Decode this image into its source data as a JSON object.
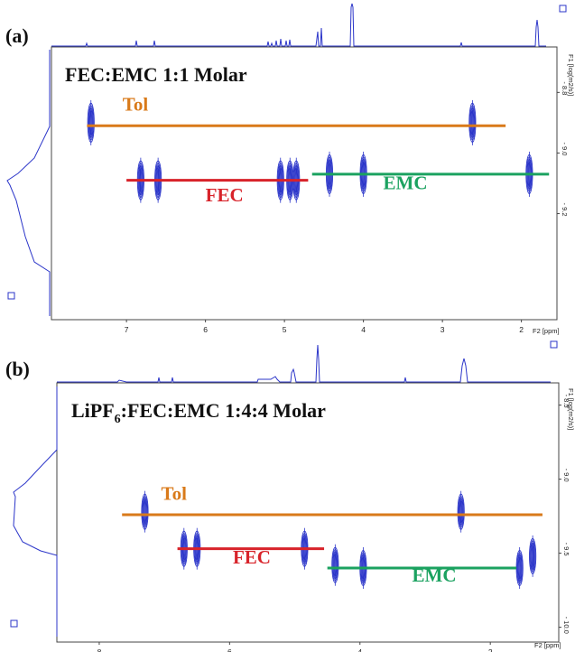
{
  "colors": {
    "fec": "#d8232a",
    "emc": "#1ba260",
    "tol": "#d97a1a",
    "spectrum": "#2b35c9",
    "frame": "#444444"
  },
  "chart_data": [
    {
      "type": "scatter",
      "panel": "(a)",
      "title": "FEC:EMC 1:1 Molar",
      "xlabel": "F2 [ppm]",
      "ylabel": "F1 [log(m2/s)]",
      "xlim": [
        7.95,
        1.55
      ],
      "ylim": [
        -8.65,
        -9.55
      ],
      "x_ticks": [
        7,
        6,
        5,
        4,
        3,
        2
      ],
      "y_ticks": [
        -9.2,
        -9.0,
        -8.8
      ],
      "y_tick_labels": [
        "- 9.2",
        "- 9.0",
        "- 8.8"
      ],
      "assignments": [
        {
          "name": "FEC",
          "x_start": 7.0,
          "x_end": 4.7,
          "y": -9.09,
          "label_x": 6.0,
          "label_y": -9.16
        },
        {
          "name": "EMC",
          "x_start": 4.65,
          "x_end": 1.65,
          "y": -9.07,
          "label_x": 3.75,
          "label_y": -9.12
        },
        {
          "name": "Tol",
          "x_start": 7.5,
          "x_end": 2.2,
          "y": -8.91,
          "label_x": 7.05,
          "label_y": -8.86
        }
      ],
      "peaks": [
        {
          "x": 7.45,
          "y": -8.9
        },
        {
          "x": 6.82,
          "y": -9.09
        },
        {
          "x": 6.6,
          "y": -9.09
        },
        {
          "x": 5.05,
          "y": -9.09
        },
        {
          "x": 4.93,
          "y": -9.09
        },
        {
          "x": 4.85,
          "y": -9.09
        },
        {
          "x": 4.43,
          "y": -9.07
        },
        {
          "x": 4.0,
          "y": -9.07
        },
        {
          "x": 2.62,
          "y": -8.9
        },
        {
          "x": 1.9,
          "y": -9.07
        }
      ]
    },
    {
      "type": "scatter",
      "panel": "(b)",
      "title_parts": [
        "LiPF",
        "6",
        ":FEC:EMC 1:4:4 Molar"
      ],
      "xlabel": "F2 [ppm]",
      "ylabel": "F1 [log(m2/s)]",
      "xlim": [
        8.65,
        0.95
      ],
      "ylim": [
        -8.35,
        -10.1
      ],
      "x_ticks": [
        8,
        6,
        4,
        2
      ],
      "y_ticks": [
        -10.0,
        -9.5,
        -9.0,
        -8.5
      ],
      "y_tick_labels": [
        "- 10.0",
        "- 9.5",
        "- 9.0",
        "- 8.5"
      ],
      "assignments": [
        {
          "name": "FEC",
          "x_start": 6.8,
          "x_end": 4.55,
          "y": -9.47,
          "label_x": 5.95,
          "label_y": -9.57
        },
        {
          "name": "EMC",
          "x_start": 4.5,
          "x_end": 1.6,
          "y": -9.6,
          "label_x": 3.2,
          "label_y": -9.69
        },
        {
          "name": "Tol",
          "x_start": 7.65,
          "x_end": 1.2,
          "y": -9.24,
          "label_x": 7.05,
          "label_y": -9.14
        }
      ],
      "peaks": [
        {
          "x": 7.3,
          "y": -9.22
        },
        {
          "x": 6.7,
          "y": -9.47
        },
        {
          "x": 6.5,
          "y": -9.47
        },
        {
          "x": 4.85,
          "y": -9.47
        },
        {
          "x": 4.38,
          "y": -9.58
        },
        {
          "x": 3.95,
          "y": -9.6
        },
        {
          "x": 2.45,
          "y": -9.22
        },
        {
          "x": 1.55,
          "y": -9.6
        },
        {
          "x": 1.35,
          "y": -9.52
        }
      ]
    }
  ]
}
